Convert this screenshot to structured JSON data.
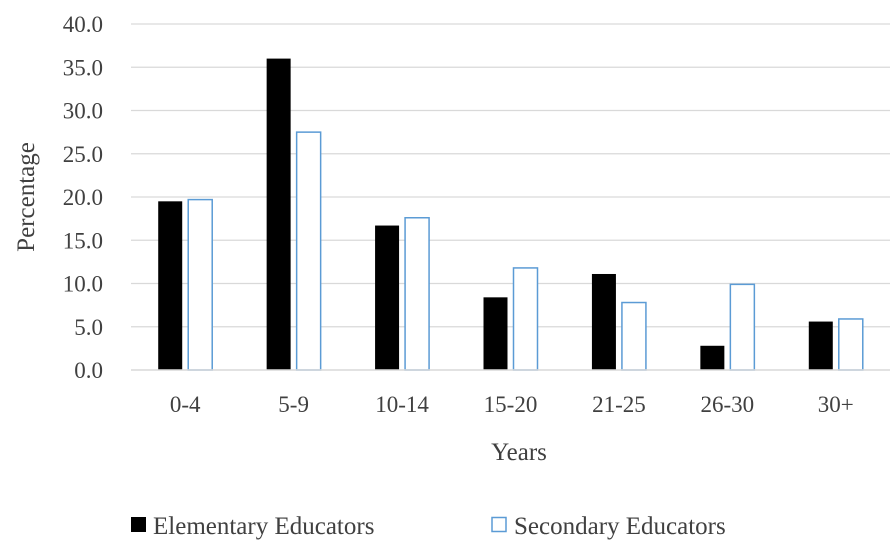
{
  "chart_data": {
    "type": "bar",
    "xlabel": "Years",
    "ylabel": "Percentage",
    "categories": [
      "0-4",
      "5-9",
      "10-14",
      "15-20",
      "21-25",
      "26-30",
      "30+"
    ],
    "series": [
      {
        "name": "Elementary Educators",
        "values": [
          19.5,
          36.0,
          16.7,
          8.4,
          11.1,
          2.8,
          5.6
        ],
        "color": "#000000",
        "fill": "solid"
      },
      {
        "name": "Secondary Educators",
        "values": [
          19.7,
          27.5,
          17.6,
          11.8,
          7.8,
          9.9,
          5.9
        ],
        "color": "#5b9bd5",
        "fill": "outline"
      }
    ],
    "yticks": [
      "0.0",
      "5.0",
      "10.0",
      "15.0",
      "20.0",
      "25.0",
      "30.0",
      "35.0",
      "40.0"
    ],
    "ylim": [
      0,
      40
    ],
    "grid": true,
    "legend": "bottom"
  }
}
